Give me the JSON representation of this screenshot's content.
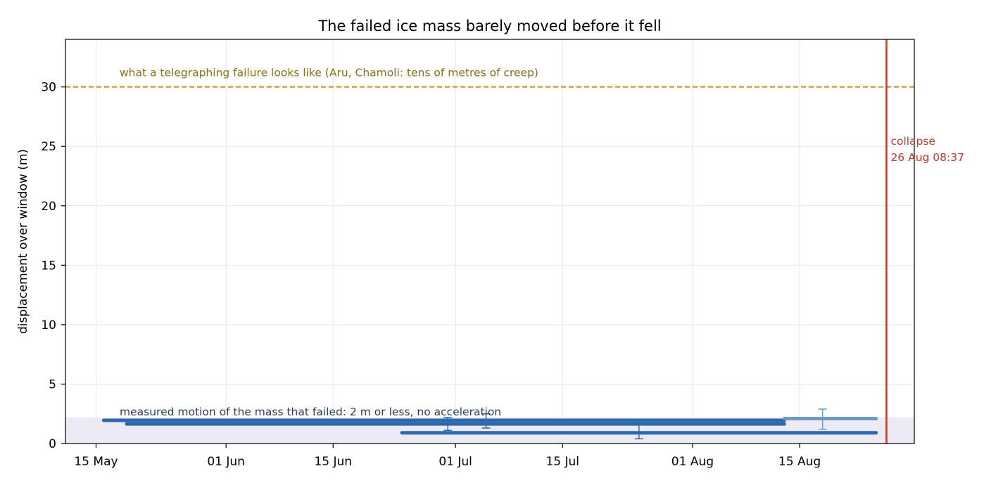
{
  "chart_data": {
    "type": "line",
    "title": "The failed ice mass barely moved before it fell",
    "xlabel": "",
    "ylabel": "displacement over window (m)",
    "x_axis": "date",
    "xlim": [
      "2025-05-11",
      "2025-08-30"
    ],
    "ylim": [
      0,
      34
    ],
    "xticks": [
      {
        "date": "2025-05-15",
        "label": "15 May"
      },
      {
        "date": "2025-06-01",
        "label": "01 Jun"
      },
      {
        "date": "2025-06-15",
        "label": "15 Jun"
      },
      {
        "date": "2025-07-01",
        "label": "01 Jul"
      },
      {
        "date": "2025-07-15",
        "label": "15 Jul"
      },
      {
        "date": "2025-08-01",
        "label": "01 Aug"
      },
      {
        "date": "2025-08-15",
        "label": "15 Aug"
      }
    ],
    "yticks": [
      0,
      5,
      10,
      15,
      20,
      25,
      30
    ],
    "grid": true,
    "legend": "none",
    "colors": {
      "segment": "#2c68ad",
      "segment_light": "#6e98c8",
      "errorbar": "#2c68ad",
      "errorbar_light": "#6e98c8",
      "reference": "#b8951e",
      "reference_text": "#86711c",
      "collapse": "#c0392b",
      "band": "#ecebf3",
      "measured_text": "#2e3f55",
      "grid": "#e6e6e6"
    },
    "segments": [
      {
        "start": "2025-05-16",
        "end": "2025-08-13",
        "y": 1.95,
        "style": "dark"
      },
      {
        "start": "2025-05-19",
        "end": "2025-08-13",
        "y": 1.65,
        "style": "dark"
      },
      {
        "start": "2025-06-24",
        "end": "2025-08-25",
        "y": 0.9,
        "style": "dark"
      },
      {
        "start": "2025-08-13",
        "end": "2025-08-25",
        "y": 2.1,
        "style": "light"
      }
    ],
    "error_bars": [
      {
        "date": "2025-06-30",
        "y": 1.6,
        "low": 1.1,
        "high": 2.2,
        "style": "dark"
      },
      {
        "date": "2025-07-05",
        "y": 1.9,
        "low": 1.3,
        "high": 2.5,
        "style": "dark"
      },
      {
        "date": "2025-07-25",
        "y": 0.9,
        "low": 0.4,
        "high": 1.6,
        "style": "dark"
      },
      {
        "date": "2025-08-18",
        "y": 2.1,
        "low": 1.2,
        "high": 2.9,
        "style": "light"
      }
    ],
    "reference_line": {
      "y": 30
    },
    "measured_band": {
      "y": 2.2
    },
    "collapse": {
      "date": "2025-08-26",
      "hour": 8.62
    },
    "annotations": {
      "reference": "what a telegraphing failure looks like (Aru, Chamoli: tens of metres of creep)",
      "measured": "measured motion of the mass that failed: 2 m or less, no acceleration",
      "collapse_line1": "collapse",
      "collapse_line2": "26 Aug 08:37"
    }
  }
}
